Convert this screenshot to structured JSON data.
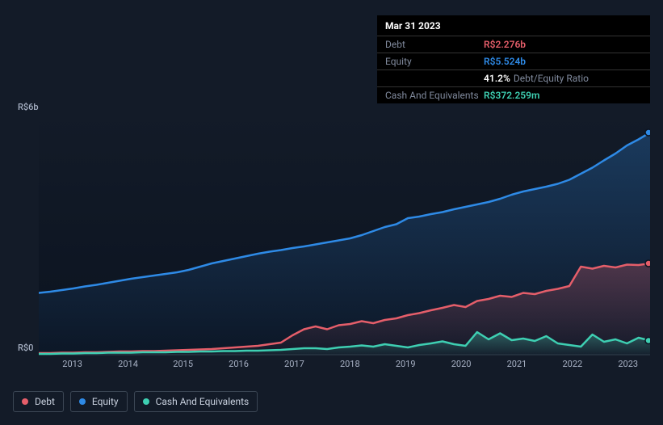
{
  "tooltip": {
    "date": "Mar 31 2023",
    "rows": [
      {
        "label": "Debt",
        "value": "R$2.276b",
        "color": "#e55e6a"
      },
      {
        "label": "Equity",
        "value": "R$5.524b",
        "color": "#2e8ae6"
      },
      {
        "label": "",
        "value": "41.2%",
        "suffix": "Debt/Equity Ratio",
        "color": "#ffffff"
      },
      {
        "label": "Cash And Equivalents",
        "value": "R$372.259m",
        "color": "#3ecfb2"
      }
    ]
  },
  "chart": {
    "type": "area",
    "background": "#131b28",
    "plot_bg_top": "#131b28",
    "plot_bg_bottom": "#0b1320",
    "ylim": [
      0,
      6
    ],
    "y_labels": {
      "top": "R$6b",
      "bottom": "R$0"
    },
    "x_categories": [
      "2013",
      "2014",
      "2015",
      "2016",
      "2017",
      "2018",
      "2019",
      "2020",
      "2021",
      "2022",
      "2023"
    ],
    "x_positions_pct": [
      5.5,
      14.6,
      23.6,
      32.7,
      41.8,
      50.9,
      60.0,
      69.1,
      78.2,
      87.3,
      96.4
    ],
    "series": [
      {
        "name": "Equity",
        "color": "#2e8ae6",
        "fill_opacity": 0.28,
        "line_width": 2.5,
        "values_b": [
          1.55,
          1.58,
          1.62,
          1.66,
          1.71,
          1.75,
          1.8,
          1.85,
          1.9,
          1.94,
          1.98,
          2.02,
          2.06,
          2.12,
          2.2,
          2.28,
          2.34,
          2.4,
          2.46,
          2.52,
          2.57,
          2.61,
          2.66,
          2.7,
          2.75,
          2.8,
          2.85,
          2.9,
          2.98,
          3.08,
          3.18,
          3.25,
          3.4,
          3.44,
          3.5,
          3.55,
          3.62,
          3.68,
          3.74,
          3.8,
          3.88,
          3.98,
          4.06,
          4.12,
          4.18,
          4.25,
          4.35,
          4.5,
          4.65,
          4.83,
          5.0,
          5.2,
          5.35,
          5.52
        ]
      },
      {
        "name": "Debt",
        "color": "#e55e6a",
        "fill_opacity": 0.28,
        "line_width": 2.5,
        "values_b": [
          0.06,
          0.06,
          0.07,
          0.07,
          0.08,
          0.08,
          0.09,
          0.1,
          0.1,
          0.11,
          0.11,
          0.12,
          0.13,
          0.14,
          0.15,
          0.16,
          0.18,
          0.2,
          0.22,
          0.24,
          0.28,
          0.32,
          0.5,
          0.65,
          0.72,
          0.65,
          0.75,
          0.78,
          0.85,
          0.8,
          0.88,
          0.92,
          1.0,
          1.05,
          1.12,
          1.18,
          1.25,
          1.2,
          1.35,
          1.4,
          1.48,
          1.45,
          1.55,
          1.52,
          1.6,
          1.65,
          1.72,
          2.2,
          2.15,
          2.22,
          2.18,
          2.25,
          2.24,
          2.28
        ]
      },
      {
        "name": "Cash And Equivalents",
        "color": "#3ecfb2",
        "fill_opacity": 0.35,
        "line_width": 2.5,
        "values_b": [
          0.04,
          0.04,
          0.05,
          0.05,
          0.06,
          0.06,
          0.07,
          0.07,
          0.07,
          0.08,
          0.08,
          0.08,
          0.09,
          0.09,
          0.1,
          0.1,
          0.11,
          0.11,
          0.12,
          0.12,
          0.13,
          0.14,
          0.16,
          0.18,
          0.18,
          0.16,
          0.2,
          0.22,
          0.25,
          0.22,
          0.28,
          0.24,
          0.2,
          0.26,
          0.3,
          0.35,
          0.28,
          0.24,
          0.58,
          0.4,
          0.55,
          0.38,
          0.42,
          0.36,
          0.48,
          0.3,
          0.26,
          0.22,
          0.52,
          0.34,
          0.4,
          0.3,
          0.44,
          0.37
        ]
      }
    ],
    "legend": [
      {
        "label": "Debt",
        "color": "#e55e6a"
      },
      {
        "label": "Equity",
        "color": "#2e8ae6"
      },
      {
        "label": "Cash And Equivalents",
        "color": "#3ecfb2"
      }
    ]
  }
}
